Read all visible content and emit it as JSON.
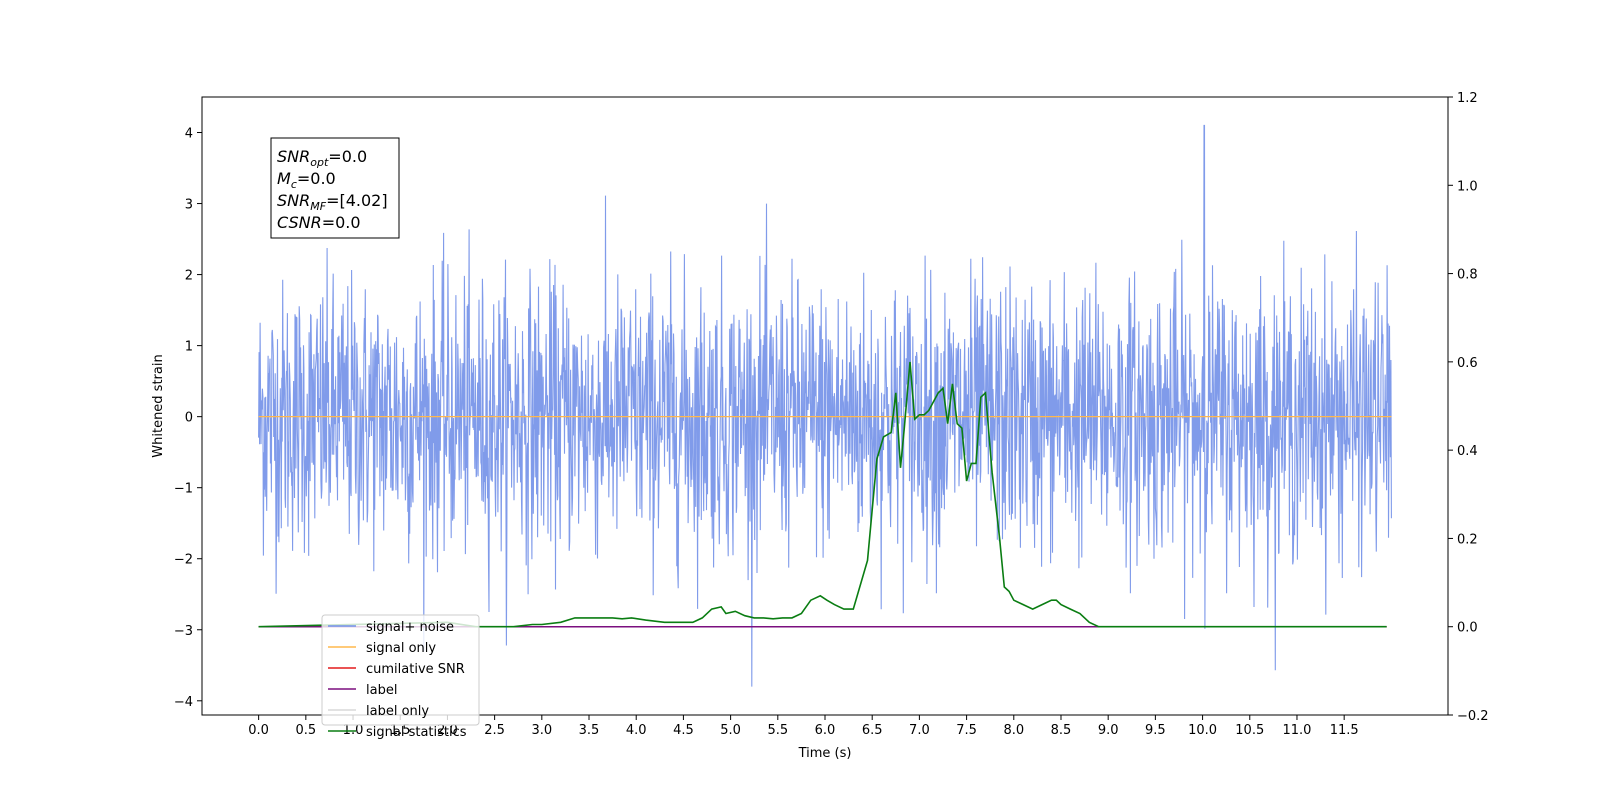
{
  "chart_data": {
    "type": "line",
    "xlabel": "Time (s)",
    "ylabel": "Whitened strain",
    "xlim": [
      -0.6,
      12.6
    ],
    "ylim": [
      -4.2,
      4.5
    ],
    "ylim_right": [
      -0.2,
      1.2
    ],
    "x_ticks": [
      "0.0",
      "0.5",
      "1.0",
      "1.5",
      "2.0",
      "2.5",
      "3.0",
      "3.5",
      "4.0",
      "4.5",
      "5.0",
      "5.5",
      "6.0",
      "6.5",
      "7.0",
      "7.5",
      "8.0",
      "8.5",
      "9.0",
      "9.5",
      "10.0",
      "10.5",
      "11.0",
      "11.5"
    ],
    "y_ticks_left": [
      "−4",
      "−3",
      "−2",
      "−1",
      "0",
      "1",
      "2",
      "3",
      "4"
    ],
    "y_ticks_right": [
      "−0.2",
      "0.0",
      "0.2",
      "0.4",
      "0.6",
      "0.8",
      "1.0",
      "1.2"
    ],
    "grid": false,
    "legend_position": "lower-left",
    "annotation_box": {
      "lines": [
        {
          "sym": "SNR",
          "sub": "opt",
          "val": "=0.0"
        },
        {
          "sym": "M",
          "sub": "c",
          "val": "=0.0"
        },
        {
          "sym": "SNR",
          "sub": "MF",
          "val": "=[4.02]"
        },
        {
          "sym": "CSNR",
          "sub": "",
          "val": "=0.0"
        }
      ]
    },
    "series": [
      {
        "name": "signal+ noise",
        "color": "#7290e8",
        "axis": "left",
        "kind": "noise",
        "duration": 12.0,
        "typical_range": [
          -2.0,
          2.0
        ],
        "extreme_range": [
          -3.8,
          4.1
        ],
        "peak_x": 10.02,
        "peak_y": 4.1
      },
      {
        "name": "signal only",
        "color": "#ffb84d",
        "axis": "left",
        "constant": 0.0
      },
      {
        "name": "cumilative SNR",
        "color": "#e41a1c",
        "axis": "right",
        "constant": 0.0
      },
      {
        "name": "label",
        "color": "#7b0f7f",
        "axis": "right",
        "constant": 0.0
      },
      {
        "name": "label only",
        "color": "#d9d9d9",
        "axis": "right",
        "hidden": true
      },
      {
        "name": "signal statistics",
        "color": "#0a7d12",
        "axis": "right",
        "x": [
          0.0,
          2.0,
          2.3,
          2.5,
          2.7,
          2.9,
          3.0,
          3.2,
          3.35,
          3.45,
          3.6,
          3.75,
          3.85,
          3.95,
          4.1,
          4.3,
          4.5,
          4.6,
          4.7,
          4.8,
          4.9,
          4.95,
          5.05,
          5.15,
          5.25,
          5.35,
          5.45,
          5.55,
          5.65,
          5.75,
          5.85,
          5.95,
          6.02,
          6.1,
          6.2,
          6.3,
          6.45,
          6.55,
          6.62,
          6.7,
          6.75,
          6.8,
          6.84,
          6.9,
          6.95,
          7.0,
          7.05,
          7.1,
          7.2,
          7.25,
          7.3,
          7.35,
          7.4,
          7.45,
          7.5,
          7.55,
          7.6,
          7.65,
          7.7,
          7.77,
          7.85,
          7.9,
          7.95,
          8.0,
          8.1,
          8.2,
          8.3,
          8.4,
          8.45,
          8.5,
          8.6,
          8.7,
          8.8,
          8.9,
          9.0,
          9.2,
          9.4,
          9.6,
          9.8,
          10.0,
          10.5,
          11.0,
          11.5,
          11.95
        ],
        "y": [
          0.0,
          0.01,
          0.0,
          0.0,
          0.0,
          0.005,
          0.005,
          0.01,
          0.02,
          0.02,
          0.02,
          0.02,
          0.018,
          0.02,
          0.015,
          0.01,
          0.01,
          0.01,
          0.02,
          0.04,
          0.045,
          0.03,
          0.035,
          0.025,
          0.02,
          0.02,
          0.018,
          0.02,
          0.02,
          0.03,
          0.06,
          0.07,
          0.06,
          0.05,
          0.04,
          0.04,
          0.15,
          0.38,
          0.43,
          0.44,
          0.53,
          0.36,
          0.45,
          0.6,
          0.47,
          0.48,
          0.48,
          0.49,
          0.53,
          0.54,
          0.46,
          0.55,
          0.46,
          0.45,
          0.33,
          0.37,
          0.37,
          0.52,
          0.53,
          0.35,
          0.2,
          0.09,
          0.08,
          0.06,
          0.05,
          0.04,
          0.05,
          0.06,
          0.06,
          0.05,
          0.04,
          0.03,
          0.01,
          0.0,
          0.0,
          0.0,
          0.0,
          0.0,
          0.0,
          0.0,
          0.0,
          0.0,
          0.0,
          0.0
        ]
      }
    ]
  }
}
